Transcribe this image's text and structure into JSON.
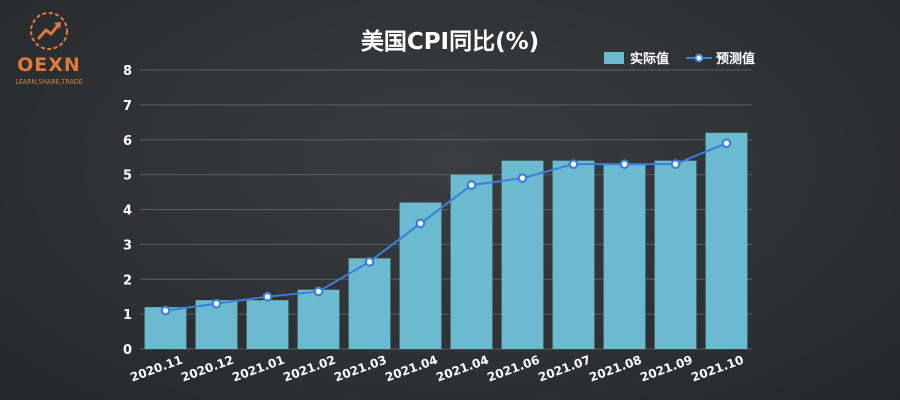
{
  "logo": {
    "name": "OEXN",
    "tagline": "LEARN,SHARE,TRADE"
  },
  "colors": {
    "bar": "#6cbad0",
    "line": "#3a7fdc",
    "logo": "#e07a3c"
  },
  "chart_data": {
    "type": "bar",
    "title": "美国CPI同比(%)",
    "categories": [
      "2020.11",
      "2020.12",
      "2021.01",
      "2021.02",
      "2021.03",
      "2021.04",
      "2021.04",
      "2021.06",
      "2021.07",
      "2021.08",
      "2021.09",
      "2021.10"
    ],
    "series": [
      {
        "name": "实际值",
        "type": "bar",
        "values": [
          1.2,
          1.4,
          1.4,
          1.7,
          2.6,
          4.2,
          5.0,
          5.4,
          5.4,
          5.3,
          5.4,
          6.2
        ]
      },
      {
        "name": "预测值",
        "type": "line",
        "values": [
          1.1,
          1.3,
          1.5,
          1.65,
          2.5,
          3.6,
          4.7,
          4.9,
          5.3,
          5.3,
          5.3,
          5.9
        ]
      }
    ],
    "ylim": [
      0,
      8
    ],
    "yticks": [
      0,
      1,
      2,
      3,
      4,
      5,
      6,
      7,
      8
    ],
    "grid": true,
    "legend": "top-right"
  }
}
